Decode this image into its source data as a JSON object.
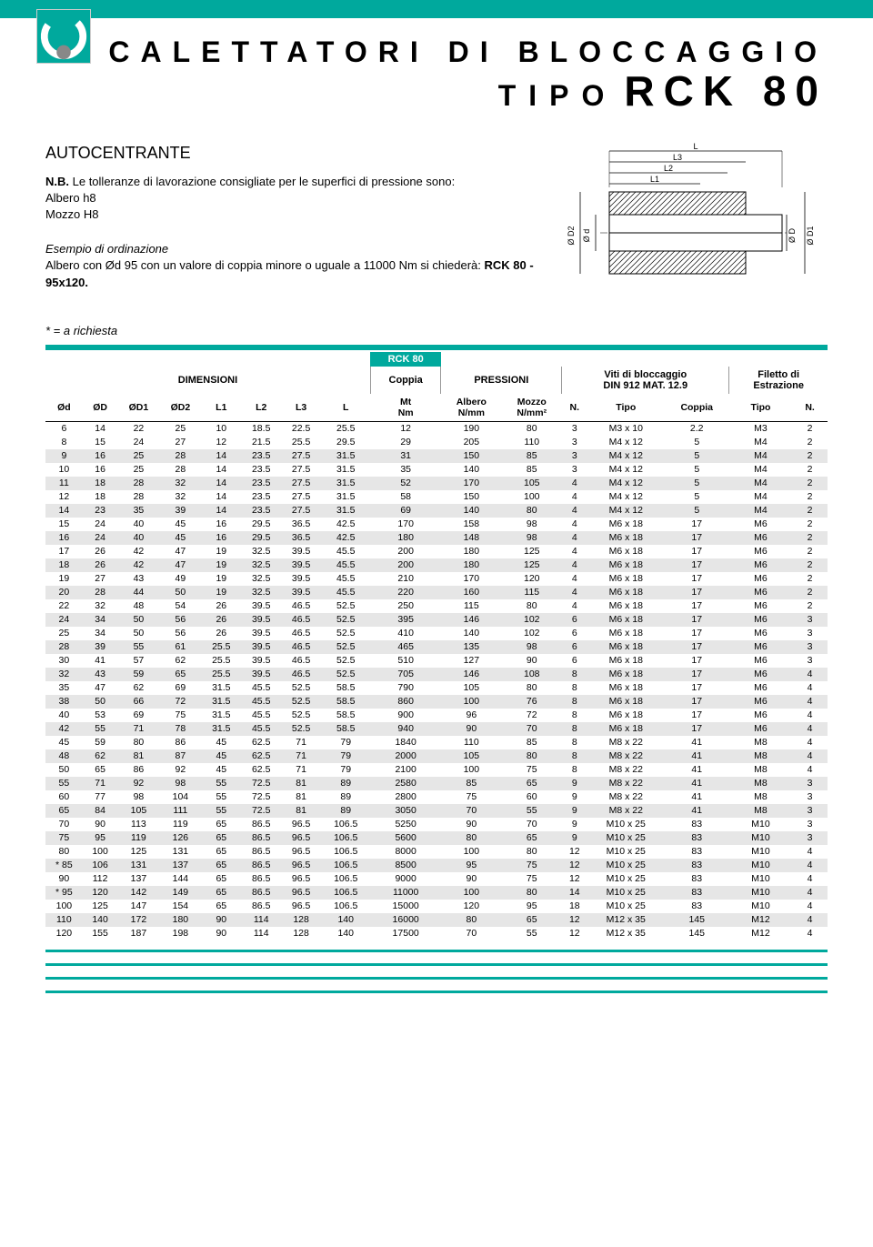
{
  "header": {
    "title_line1": "CALETTATORI DI BLOCCAGGIO",
    "title_line2_prefix": "TIPO",
    "title_line2_product": "RCK 80"
  },
  "subtitle": "AUTOCENTRANTE",
  "tolerance": {
    "nb_prefix": "N.B.",
    "nb_text": "Le tolleranze di lavorazione consigliate per le superfici di pressione sono:",
    "line1": "Albero h8",
    "line2": "Mozzo H8"
  },
  "example": {
    "heading": "Esempio di ordinazione",
    "text_pre": "Albero con Ød 95 con un valore di coppia minore o uguale a 11000 Nm si chiederà:",
    "code": "RCK 80 - 95x120."
  },
  "footnote": "* = a richiesta",
  "table": {
    "caption": "RCK 80",
    "group_dim": "DIMENSIONI",
    "group_coppia_top": "Coppia",
    "group_press": "PRESSIONI",
    "group_viti_top": "Viti di bloccaggio",
    "group_viti_bot": "DIN 912 MAT. 12.9",
    "group_fil_top": "Filetto di",
    "group_fil_bot": "Estrazione",
    "cols": [
      "Ød",
      "ØD",
      "ØD1",
      "ØD2",
      "L1",
      "L2",
      "L3",
      "L",
      "Mt\nNm",
      "Albero\nN/mm",
      "Mozzo\nN/mm²",
      "N.",
      "Tipo",
      "Coppia",
      "Tipo",
      "N."
    ],
    "rows": [
      [
        "6",
        "14",
        "22",
        "25",
        "10",
        "18.5",
        "22.5",
        "25.5",
        "12",
        "190",
        "80",
        "3",
        "M3 x 10",
        "2.2",
        "M3",
        "2"
      ],
      [
        "8",
        "15",
        "24",
        "27",
        "12",
        "21.5",
        "25.5",
        "29.5",
        "29",
        "205",
        "110",
        "3",
        "M4 x 12",
        "5",
        "M4",
        "2"
      ],
      [
        "9",
        "16",
        "25",
        "28",
        "14",
        "23.5",
        "27.5",
        "31.5",
        "31",
        "150",
        "85",
        "3",
        "M4 x 12",
        "5",
        "M4",
        "2"
      ],
      [
        "10",
        "16",
        "25",
        "28",
        "14",
        "23.5",
        "27.5",
        "31.5",
        "35",
        "140",
        "85",
        "3",
        "M4 x 12",
        "5",
        "M4",
        "2"
      ],
      [
        "11",
        "18",
        "28",
        "32",
        "14",
        "23.5",
        "27.5",
        "31.5",
        "52",
        "170",
        "105",
        "4",
        "M4 x 12",
        "5",
        "M4",
        "2"
      ],
      [
        "12",
        "18",
        "28",
        "32",
        "14",
        "23.5",
        "27.5",
        "31.5",
        "58",
        "150",
        "100",
        "4",
        "M4 x 12",
        "5",
        "M4",
        "2"
      ],
      [
        "14",
        "23",
        "35",
        "39",
        "14",
        "23.5",
        "27.5",
        "31.5",
        "69",
        "140",
        "80",
        "4",
        "M4 x 12",
        "5",
        "M4",
        "2"
      ],
      [
        "15",
        "24",
        "40",
        "45",
        "16",
        "29.5",
        "36.5",
        "42.5",
        "170",
        "158",
        "98",
        "4",
        "M6 x 18",
        "17",
        "M6",
        "2"
      ],
      [
        "16",
        "24",
        "40",
        "45",
        "16",
        "29.5",
        "36.5",
        "42.5",
        "180",
        "148",
        "98",
        "4",
        "M6 x 18",
        "17",
        "M6",
        "2"
      ],
      [
        "17",
        "26",
        "42",
        "47",
        "19",
        "32.5",
        "39.5",
        "45.5",
        "200",
        "180",
        "125",
        "4",
        "M6 x 18",
        "17",
        "M6",
        "2"
      ],
      [
        "18",
        "26",
        "42",
        "47",
        "19",
        "32.5",
        "39.5",
        "45.5",
        "200",
        "180",
        "125",
        "4",
        "M6 x 18",
        "17",
        "M6",
        "2"
      ],
      [
        "19",
        "27",
        "43",
        "49",
        "19",
        "32.5",
        "39.5",
        "45.5",
        "210",
        "170",
        "120",
        "4",
        "M6 x 18",
        "17",
        "M6",
        "2"
      ],
      [
        "20",
        "28",
        "44",
        "50",
        "19",
        "32.5",
        "39.5",
        "45.5",
        "220",
        "160",
        "115",
        "4",
        "M6 x 18",
        "17",
        "M6",
        "2"
      ],
      [
        "22",
        "32",
        "48",
        "54",
        "26",
        "39.5",
        "46.5",
        "52.5",
        "250",
        "115",
        "80",
        "4",
        "M6 x 18",
        "17",
        "M6",
        "2"
      ],
      [
        "24",
        "34",
        "50",
        "56",
        "26",
        "39.5",
        "46.5",
        "52.5",
        "395",
        "146",
        "102",
        "6",
        "M6 x 18",
        "17",
        "M6",
        "3"
      ],
      [
        "25",
        "34",
        "50",
        "56",
        "26",
        "39.5",
        "46.5",
        "52.5",
        "410",
        "140",
        "102",
        "6",
        "M6 x 18",
        "17",
        "M6",
        "3"
      ],
      [
        "28",
        "39",
        "55",
        "61",
        "25.5",
        "39.5",
        "46.5",
        "52.5",
        "465",
        "135",
        "98",
        "6",
        "M6 x 18",
        "17",
        "M6",
        "3"
      ],
      [
        "30",
        "41",
        "57",
        "62",
        "25.5",
        "39.5",
        "46.5",
        "52.5",
        "510",
        "127",
        "90",
        "6",
        "M6 x 18",
        "17",
        "M6",
        "3"
      ],
      [
        "32",
        "43",
        "59",
        "65",
        "25.5",
        "39.5",
        "46.5",
        "52.5",
        "705",
        "146",
        "108",
        "8",
        "M6 x 18",
        "17",
        "M6",
        "4"
      ],
      [
        "35",
        "47",
        "62",
        "69",
        "31.5",
        "45.5",
        "52.5",
        "58.5",
        "790",
        "105",
        "80",
        "8",
        "M6 x 18",
        "17",
        "M6",
        "4"
      ],
      [
        "38",
        "50",
        "66",
        "72",
        "31.5",
        "45.5",
        "52.5",
        "58.5",
        "860",
        "100",
        "76",
        "8",
        "M6 x 18",
        "17",
        "M6",
        "4"
      ],
      [
        "40",
        "53",
        "69",
        "75",
        "31.5",
        "45.5",
        "52.5",
        "58.5",
        "900",
        "96",
        "72",
        "8",
        "M6 x 18",
        "17",
        "M6",
        "4"
      ],
      [
        "42",
        "55",
        "71",
        "78",
        "31.5",
        "45.5",
        "52.5",
        "58.5",
        "940",
        "90",
        "70",
        "8",
        "M6 x 18",
        "17",
        "M6",
        "4"
      ],
      [
        "45",
        "59",
        "80",
        "86",
        "45",
        "62.5",
        "71",
        "79",
        "1840",
        "110",
        "85",
        "8",
        "M8 x 22",
        "41",
        "M8",
        "4"
      ],
      [
        "48",
        "62",
        "81",
        "87",
        "45",
        "62.5",
        "71",
        "79",
        "2000",
        "105",
        "80",
        "8",
        "M8 x 22",
        "41",
        "M8",
        "4"
      ],
      [
        "50",
        "65",
        "86",
        "92",
        "45",
        "62.5",
        "71",
        "79",
        "2100",
        "100",
        "75",
        "8",
        "M8 x 22",
        "41",
        "M8",
        "4"
      ],
      [
        "55",
        "71",
        "92",
        "98",
        "55",
        "72.5",
        "81",
        "89",
        "2580",
        "85",
        "65",
        "9",
        "M8 x 22",
        "41",
        "M8",
        "3"
      ],
      [
        "60",
        "77",
        "98",
        "104",
        "55",
        "72.5",
        "81",
        "89",
        "2800",
        "75",
        "60",
        "9",
        "M8 x 22",
        "41",
        "M8",
        "3"
      ],
      [
        "65",
        "84",
        "105",
        "111",
        "55",
        "72.5",
        "81",
        "89",
        "3050",
        "70",
        "55",
        "9",
        "M8 x 22",
        "41",
        "M8",
        "3"
      ],
      [
        "70",
        "90",
        "113",
        "119",
        "65",
        "86.5",
        "96.5",
        "106.5",
        "5250",
        "90",
        "70",
        "9",
        "M10 x 25",
        "83",
        "M10",
        "3"
      ],
      [
        "75",
        "95",
        "119",
        "126",
        "65",
        "86.5",
        "96.5",
        "106.5",
        "5600",
        "80",
        "65",
        "9",
        "M10 x 25",
        "83",
        "M10",
        "3"
      ],
      [
        "80",
        "100",
        "125",
        "131",
        "65",
        "86.5",
        "96.5",
        "106.5",
        "8000",
        "100",
        "80",
        "12",
        "M10 x 25",
        "83",
        "M10",
        "4"
      ],
      [
        "* 85",
        "106",
        "131",
        "137",
        "65",
        "86.5",
        "96.5",
        "106.5",
        "8500",
        "95",
        "75",
        "12",
        "M10 x 25",
        "83",
        "M10",
        "4"
      ],
      [
        "90",
        "112",
        "137",
        "144",
        "65",
        "86.5",
        "96.5",
        "106.5",
        "9000",
        "90",
        "75",
        "12",
        "M10 x 25",
        "83",
        "M10",
        "4"
      ],
      [
        "* 95",
        "120",
        "142",
        "149",
        "65",
        "86.5",
        "96.5",
        "106.5",
        "11000",
        "100",
        "80",
        "14",
        "M10 x 25",
        "83",
        "M10",
        "4"
      ],
      [
        "100",
        "125",
        "147",
        "154",
        "65",
        "86.5",
        "96.5",
        "106.5",
        "15000",
        "120",
        "95",
        "18",
        "M10 x 25",
        "83",
        "M10",
        "4"
      ],
      [
        "110",
        "140",
        "172",
        "180",
        "90",
        "114",
        "128",
        "140",
        "16000",
        "80",
        "65",
        "12",
        "M12 x 35",
        "145",
        "M12",
        "4"
      ],
      [
        "120",
        "155",
        "187",
        "198",
        "90",
        "114",
        "128",
        "140",
        "17500",
        "70",
        "55",
        "12",
        "M12 x 35",
        "145",
        "M12",
        "4"
      ]
    ],
    "shade_pattern_start": 0,
    "colors": {
      "accent": "#00a99d",
      "shade": "#e6e6e6"
    }
  },
  "diagram": {
    "labels": {
      "L": "L",
      "L1": "L1",
      "L2": "L2",
      "L3": "L3",
      "d": "Ø d",
      "D": "Ø D",
      "D1": "Ø D1",
      "D2": "Ø D2"
    }
  }
}
